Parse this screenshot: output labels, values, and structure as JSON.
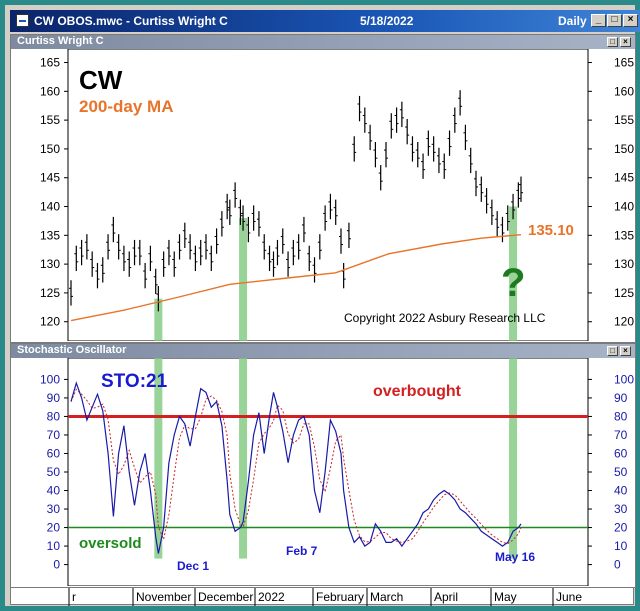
{
  "window": {
    "title": "CW OBOS.mwc - Curtiss Wright C",
    "date": "5/18/2022",
    "period": "Daily",
    "buttons": [
      "minimize",
      "restore",
      "close"
    ]
  },
  "price_pane": {
    "header": "Curtiss Wright C",
    "symbol": "CW",
    "ma_label": "200-day MA",
    "ma_value_label": "135.10",
    "question_mark": "?",
    "copyright": "Copyright 2022 Asbury Research LLC"
  },
  "osc_pane": {
    "header": "Stochastic Oscillator",
    "label": "STO:21",
    "overbought_label": "overbought",
    "oversold_label": "oversold",
    "markers": [
      "Dec 1",
      "Feb 7",
      "May 16"
    ]
  },
  "x_axis": {
    "labels": [
      "r",
      "November",
      "December",
      "2022",
      "February",
      "March",
      "April",
      "May",
      "June"
    ]
  },
  "colors": {
    "price_bars": "#000000",
    "ma_line": "#e8742a",
    "osc_line": "#1a1aa8",
    "osc_signal": "#cc2222",
    "overbought": "#d42020",
    "oversold": "#1e8a1e",
    "highlight": "#7ec97e",
    "symbol_text": "#000000",
    "ma_text": "#e8742a",
    "sto_text": "#1a1ad0"
  },
  "chart_data": [
    {
      "type": "line",
      "title": "CW",
      "y_ticks": [
        120,
        125,
        130,
        135,
        140,
        145,
        150,
        155,
        160,
        165
      ],
      "ylim": [
        117,
        167
      ],
      "series": [
        {
          "name": "price",
          "x": [
            0,
            4,
            8,
            12,
            16,
            20,
            24,
            28,
            32,
            36,
            40,
            44,
            48,
            52,
            56,
            60,
            64,
            66,
            70,
            74,
            78,
            82,
            86,
            90,
            94,
            98,
            102,
            106,
            110,
            114,
            118,
            120,
            124,
            128,
            130,
            134,
            138,
            142,
            146,
            150,
            153,
            156,
            160,
            164,
            168,
            172,
            176,
            180,
            184,
            188,
            192,
            196,
            200,
            204,
            206,
            210,
            214,
            218,
            222,
            226,
            230,
            234,
            238,
            242,
            246,
            250,
            254,
            258,
            262,
            266,
            270,
            274,
            278,
            282,
            286,
            290,
            294,
            298,
            302,
            306,
            310,
            314,
            318,
            322,
            326,
            330,
            334,
            338,
            340
          ],
          "values": [
            125,
            131,
            132,
            133,
            130,
            128,
            129,
            133,
            136,
            133,
            131,
            130,
            132,
            132,
            128,
            131,
            127,
            124,
            130,
            132,
            130,
            133,
            135,
            133,
            131,
            132,
            133,
            131,
            134,
            137,
            140,
            139,
            142,
            139,
            138,
            136,
            138,
            137,
            133,
            131,
            130,
            132,
            134,
            130,
            132,
            133,
            136,
            131,
            129,
            133,
            138,
            140,
            139,
            134,
            128,
            135,
            150,
            157,
            155,
            152,
            149,
            145,
            149,
            154,
            155,
            156,
            153,
            150,
            149,
            147,
            151,
            150,
            148,
            147,
            151,
            155,
            158,
            152,
            148,
            144,
            143,
            141,
            139,
            137,
            136,
            138,
            140,
            142,
            143
          ]
        },
        {
          "name": "200-day MA",
          "x": [
            0,
            40,
            80,
            120,
            160,
            200,
            240,
            280,
            310,
            340
          ],
          "values": [
            120.2,
            122.0,
            124.2,
            126.5,
            127.5,
            128.5,
            131.8,
            133.5,
            134.5,
            135.1
          ]
        }
      ]
    },
    {
      "type": "line",
      "title": "STO:21",
      "y_ticks": [
        0,
        10,
        20,
        30,
        40,
        50,
        60,
        70,
        80,
        90,
        100
      ],
      "ylim": [
        -4,
        104
      ],
      "overbought": 80,
      "oversold": 20,
      "series": [
        {
          "name": "%K",
          "x": [
            0,
            4,
            8,
            12,
            16,
            20,
            24,
            28,
            32,
            36,
            40,
            44,
            48,
            52,
            56,
            60,
            64,
            66,
            70,
            74,
            78,
            82,
            86,
            90,
            94,
            98,
            102,
            106,
            110,
            114,
            118,
            120,
            124,
            128,
            130,
            134,
            138,
            142,
            146,
            150,
            153,
            156,
            160,
            164,
            168,
            172,
            176,
            180,
            184,
            188,
            192,
            196,
            200,
            204,
            206,
            210,
            214,
            218,
            222,
            226,
            230,
            234,
            238,
            242,
            246,
            250,
            254,
            258,
            262,
            266,
            270,
            274,
            278,
            282,
            286,
            290,
            294,
            298,
            302,
            306,
            310,
            314,
            318,
            322,
            326,
            330,
            334,
            338,
            340
          ],
          "values": [
            88,
            98,
            90,
            78,
            85,
            92,
            83,
            60,
            26,
            60,
            75,
            50,
            32,
            50,
            60,
            40,
            15,
            6,
            20,
            55,
            70,
            80,
            76,
            64,
            80,
            95,
            93,
            85,
            88,
            75,
            45,
            27,
            18,
            20,
            23,
            45,
            70,
            82,
            60,
            80,
            93,
            85,
            72,
            55,
            70,
            78,
            80,
            70,
            40,
            28,
            50,
            78,
            72,
            60,
            40,
            20,
            12,
            15,
            10,
            12,
            22,
            18,
            12,
            12,
            14,
            10,
            14,
            18,
            22,
            28,
            30,
            35,
            38,
            40,
            38,
            35,
            30,
            28,
            25,
            22,
            18,
            16,
            14,
            12,
            10,
            12,
            18,
            20,
            22
          ]
        }
      ]
    }
  ]
}
